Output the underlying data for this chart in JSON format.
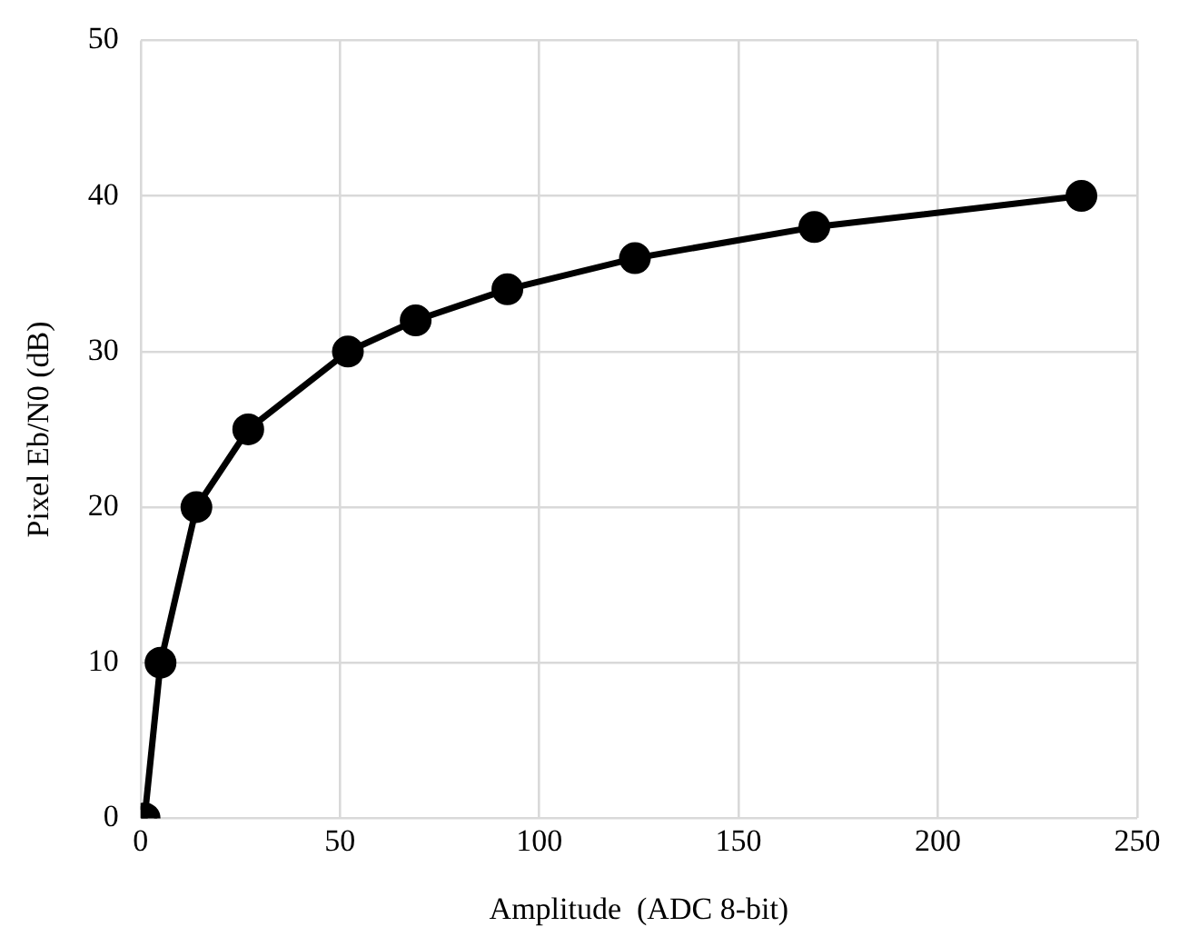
{
  "chart_data": {
    "type": "line",
    "xlabel": "Amplitude  (ADC 8-bit)",
    "ylabel": "Pixel Eb/N0 (dB)",
    "x": [
      1,
      5,
      14,
      27,
      52,
      69,
      92,
      124,
      169,
      236
    ],
    "series": [
      {
        "color": "#000000",
        "values": [
          0,
          10,
          20,
          25,
          30,
          32,
          34,
          36,
          38,
          40
        ]
      }
    ],
    "xlim": [
      0,
      250
    ],
    "xticks": [
      0,
      50,
      100,
      150,
      200,
      250
    ],
    "ylim": [
      0,
      50
    ],
    "yticks": [
      0,
      10,
      20,
      30,
      40,
      50
    ],
    "grid": true,
    "legend": false,
    "marker": "circle",
    "line_style": "solid"
  }
}
